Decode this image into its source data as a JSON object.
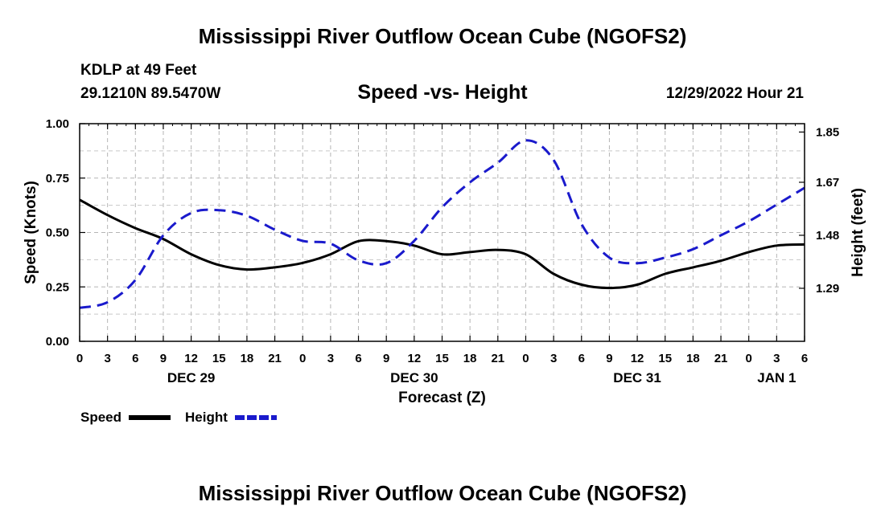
{
  "page": {
    "title_top": "Mississippi River Outflow Ocean Cube (NGOFS2)",
    "title_bottom": "Mississippi River Outflow Ocean Cube (NGOFS2)",
    "station": "KDLP at 49 Feet",
    "coords": "29.1210N  89.5470W",
    "subtitle": "Speed -vs- Height",
    "timestamp": "12/29/2022 Hour 21"
  },
  "chart_data": {
    "type": "line",
    "title": "Speed -vs- Height",
    "xlabel": "Forecast (Z)",
    "ylabel_left": "Speed (Knots)",
    "ylabel_right": "Height (feet)",
    "x_range": [
      0,
      78
    ],
    "ylim_left": [
      0,
      1.0
    ],
    "ylim_right": [
      1.1,
      1.88
    ],
    "grid": true,
    "x_tick_labels": [
      "0",
      "3",
      "6",
      "9",
      "12",
      "15",
      "18",
      "21",
      "0",
      "3",
      "6",
      "9",
      "12",
      "15",
      "18",
      "21",
      "0",
      "3",
      "6",
      "9",
      "12",
      "15",
      "18",
      "21",
      "0",
      "3",
      "6"
    ],
    "y_left_ticks": [
      "0.00",
      "0.25",
      "0.50",
      "0.75",
      "1.00"
    ],
    "y_right_ticks": [
      "1.29",
      "1.48",
      "1.67",
      "1.85"
    ],
    "date_labels": [
      {
        "text": "DEC 29",
        "at_hour": 12
      },
      {
        "text": "DEC 30",
        "at_hour": 36
      },
      {
        "text": "DEC 31",
        "at_hour": 60
      },
      {
        "text": "JAN 1",
        "at_hour": 75
      }
    ],
    "legend": [
      {
        "name": "Speed",
        "color": "#000000",
        "style": "solid"
      },
      {
        "name": "Height",
        "color": "#1a1acc",
        "style": "dashed"
      }
    ],
    "series": [
      {
        "name": "Speed",
        "axis": "left",
        "color": "#000000",
        "x": [
          0,
          3,
          6,
          9,
          12,
          15,
          18,
          21,
          24,
          27,
          30,
          33,
          36,
          39,
          42,
          45,
          48,
          51,
          54,
          57,
          60,
          63,
          66,
          69,
          72,
          75,
          78
        ],
        "values": [
          0.65,
          0.58,
          0.52,
          0.47,
          0.4,
          0.35,
          0.33,
          0.34,
          0.36,
          0.4,
          0.46,
          0.46,
          0.44,
          0.4,
          0.41,
          0.42,
          0.4,
          0.31,
          0.26,
          0.245,
          0.26,
          0.31,
          0.34,
          0.37,
          0.41,
          0.44,
          0.445
        ]
      },
      {
        "name": "Height",
        "axis": "right",
        "color": "#1a1acc",
        "x": [
          0,
          3,
          6,
          9,
          12,
          15,
          18,
          21,
          24,
          27,
          30,
          33,
          36,
          39,
          42,
          45,
          48,
          51,
          54,
          57,
          60,
          63,
          66,
          69,
          72,
          75,
          78
        ],
        "values": [
          1.22,
          1.24,
          1.32,
          1.48,
          1.56,
          1.57,
          1.55,
          1.5,
          1.46,
          1.45,
          1.39,
          1.38,
          1.46,
          1.58,
          1.67,
          1.74,
          1.82,
          1.75,
          1.52,
          1.4,
          1.38,
          1.4,
          1.43,
          1.48,
          1.53,
          1.59,
          1.65
        ]
      }
    ]
  }
}
